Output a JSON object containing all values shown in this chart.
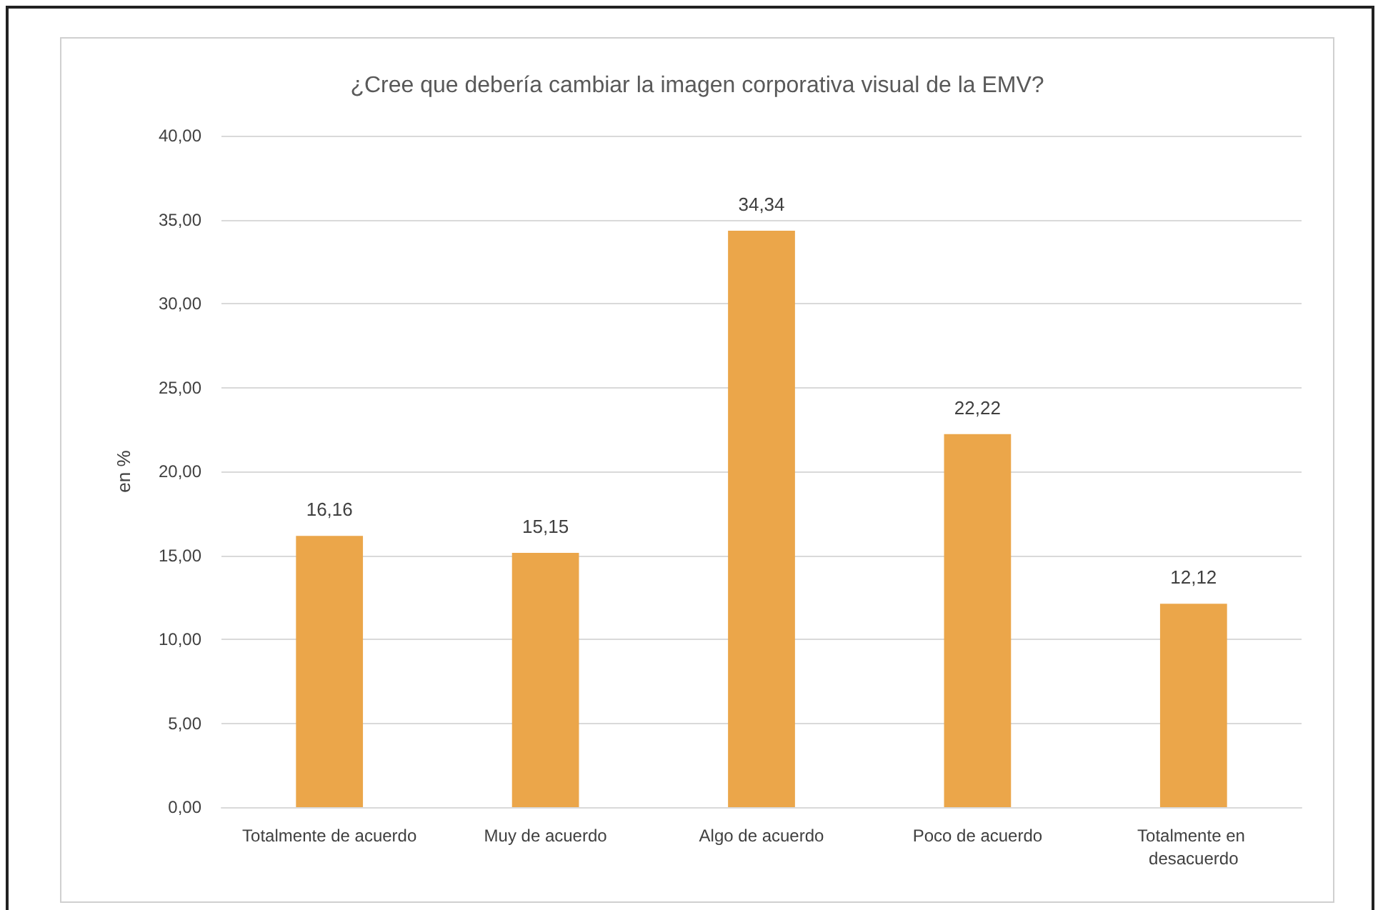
{
  "chart_data": {
    "type": "bar",
    "title": "¿Cree que debería cambiar la imagen corporativa visual de la EMV?",
    "ylabel": "en %",
    "categories": [
      "Totalmente de acuerdo",
      "Muy de acuerdo",
      "Algo de acuerdo",
      "Poco de acuerdo",
      "Totalmente en desacuerdo"
    ],
    "values": [
      16.16,
      15.15,
      34.34,
      22.22,
      12.12
    ],
    "value_labels": [
      "16,16",
      "15,15",
      "34,34",
      "22,22",
      "12,12"
    ],
    "color": "#eba64a",
    "ylim": [
      0,
      40
    ],
    "yticks": [
      {
        "value": 0,
        "label": "0,00"
      },
      {
        "value": 5,
        "label": "5,00"
      },
      {
        "value": 10,
        "label": "10,00"
      },
      {
        "value": 15,
        "label": "15,00"
      },
      {
        "value": 20,
        "label": "20,00"
      },
      {
        "value": 25,
        "label": "25,00"
      },
      {
        "value": 30,
        "label": "30,00"
      },
      {
        "value": 35,
        "label": "35,00"
      },
      {
        "value": 40,
        "label": "40,00"
      }
    ],
    "grid": "y"
  }
}
